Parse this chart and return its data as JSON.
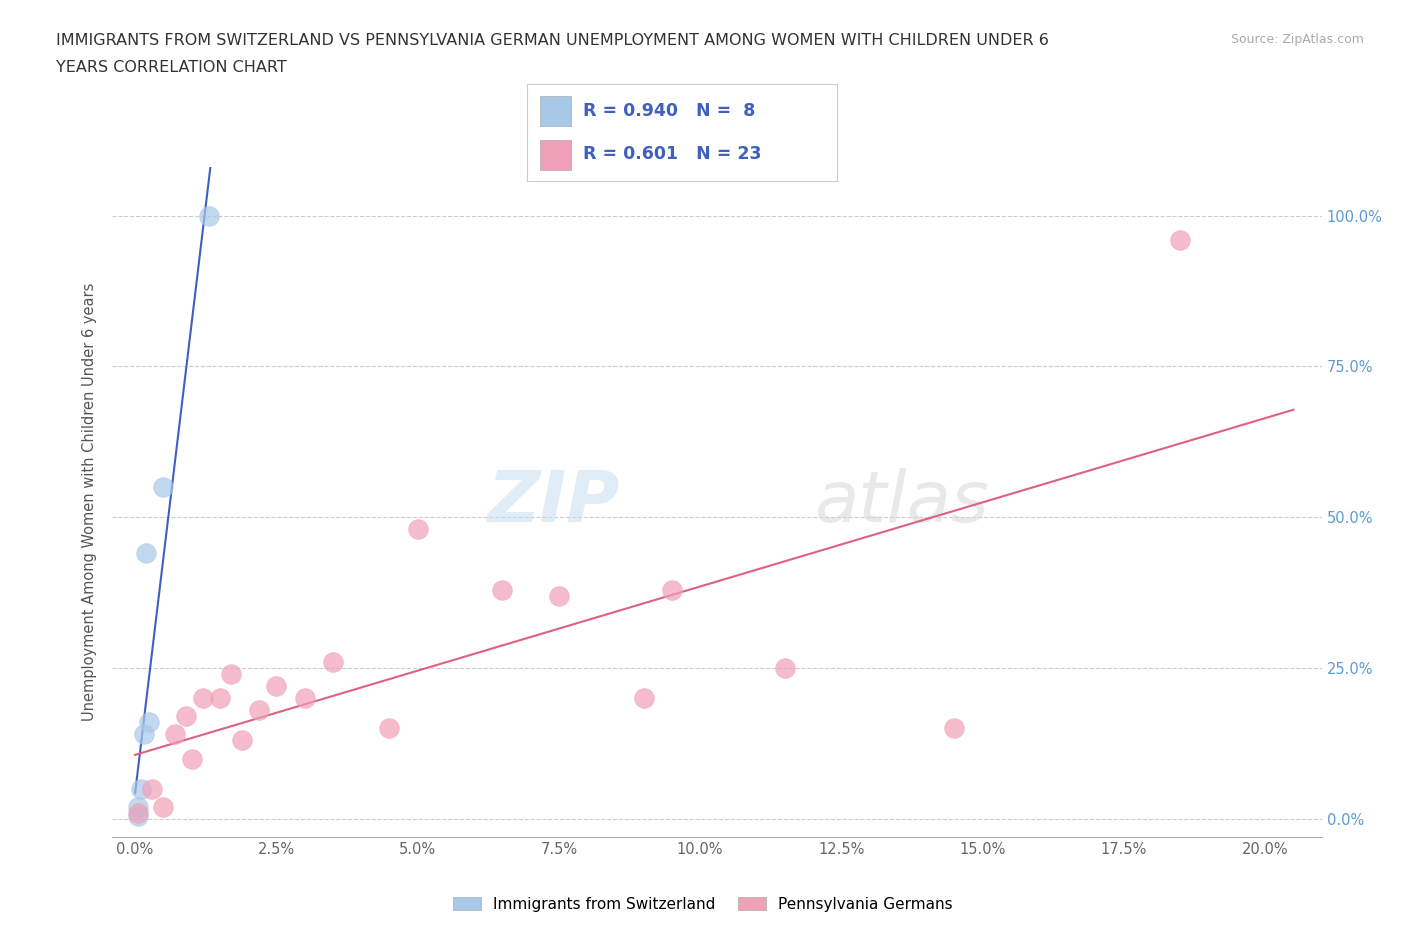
{
  "title_line1": "IMMIGRANTS FROM SWITZERLAND VS PENNSYLVANIA GERMAN UNEMPLOYMENT AMONG WOMEN WITH CHILDREN UNDER 6",
  "title_line2": "YEARS CORRELATION CHART",
  "source": "Source: ZipAtlas.com",
  "xlabel_ticks": [
    0.0,
    2.5,
    5.0,
    7.5,
    10.0,
    12.5,
    15.0,
    17.5,
    20.0
  ],
  "ylabel_ticks": [
    0.0,
    25.0,
    50.0,
    75.0,
    100.0
  ],
  "xlim": [
    -0.4,
    21.0
  ],
  "ylim": [
    -3.0,
    108.0
  ],
  "swiss_scatter_color": "#a8c8e8",
  "pa_scatter_color": "#f0a0b8",
  "swiss_line_color": "#4060c0",
  "pa_line_color": "#e06080",
  "swiss_points_x": [
    0.05,
    0.05,
    0.1,
    0.15,
    0.2,
    0.25,
    0.5,
    1.3
  ],
  "swiss_points_y": [
    0.5,
    2.0,
    5.0,
    14.0,
    44.0,
    16.0,
    55.0,
    100.0
  ],
  "pa_points_x": [
    0.05,
    0.3,
    0.5,
    0.7,
    0.9,
    1.0,
    1.2,
    1.5,
    1.7,
    1.9,
    2.2,
    2.5,
    3.0,
    3.5,
    4.5,
    5.0,
    6.5,
    7.5,
    9.0,
    9.5,
    11.5,
    14.5,
    18.5
  ],
  "pa_points_y": [
    1.0,
    5.0,
    2.0,
    14.0,
    17.0,
    10.0,
    20.0,
    20.0,
    24.0,
    13.0,
    18.0,
    22.0,
    20.0,
    26.0,
    15.0,
    48.0,
    38.0,
    37.0,
    20.0,
    38.0,
    25.0,
    15.0,
    96.0
  ],
  "swiss_R": 0.94,
  "swiss_N": 8,
  "pa_R": 0.601,
  "pa_N": 23,
  "legend_label_swiss": "Immigrants from Switzerland",
  "legend_label_pa": "Pennsylvania Germans",
  "watermark_zip": "ZIP",
  "watermark_atlas": "atlas",
  "background_color": "#ffffff",
  "grid_color": "#cccccc",
  "tick_color": "#666666",
  "right_tick_color": "#5b9bd5",
  "ylabel_text": "Unemployment Among Women with Children Under 6 years"
}
